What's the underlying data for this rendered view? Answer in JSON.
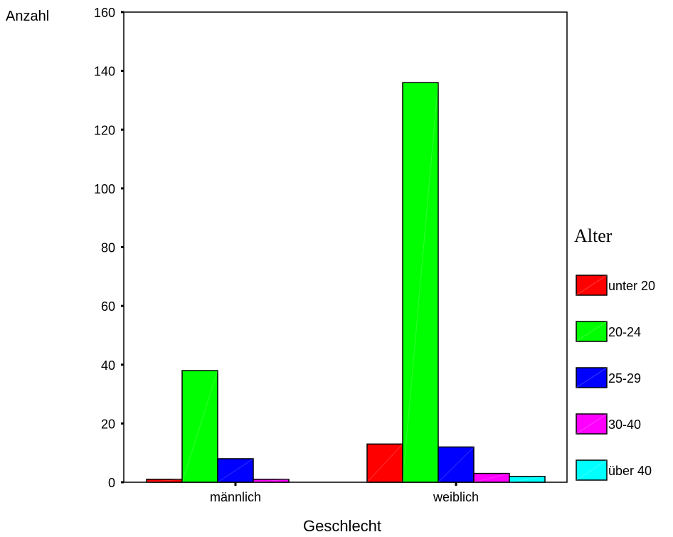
{
  "chart_data": {
    "type": "bar",
    "ylabel": "Anzahl",
    "xlabel": "Geschlecht",
    "ylim": [
      0,
      160
    ],
    "yticks": [
      "160",
      "140",
      "120",
      "100",
      "80",
      "60",
      "40",
      "20",
      "0"
    ],
    "ytick_values": [
      160,
      140,
      120,
      100,
      80,
      60,
      40,
      20,
      0
    ],
    "categories": [
      "männlich",
      "weiblich"
    ],
    "legend_title": "Alter",
    "legend_position": "right",
    "grid": false,
    "series": [
      {
        "name": "unter 20",
        "color": "#ff0000",
        "values": [
          1,
          13
        ]
      },
      {
        "name": "20-24",
        "color": "#00ff00",
        "values": [
          38,
          136
        ]
      },
      {
        "name": "25-29",
        "color": "#0000ff",
        "values": [
          8,
          12
        ]
      },
      {
        "name": "30-40",
        "color": "#ff00ff",
        "values": [
          1,
          3
        ]
      },
      {
        "name": "über 40",
        "color": "#00ffff",
        "values": [
          0,
          2
        ]
      }
    ]
  }
}
